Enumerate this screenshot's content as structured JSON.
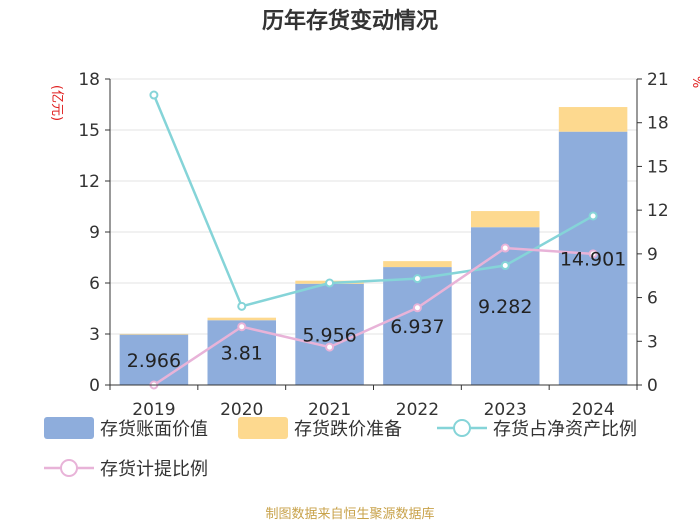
{
  "chart_data": {
    "type": "bar",
    "title": "历年存货变动情况",
    "categories": [
      "2019",
      "2020",
      "2021",
      "2022",
      "2023",
      "2024"
    ],
    "left_axis": {
      "unit": "(亿元)",
      "ylim": [
        0,
        18
      ],
      "ticks": [
        "0",
        "3",
        "6",
        "9",
        "12",
        "15",
        "18"
      ]
    },
    "right_axis": {
      "unit": "%",
      "ylim": [
        0,
        21
      ],
      "ticks": [
        "0",
        "3",
        "6",
        "9",
        "12",
        "15",
        "18",
        "21"
      ]
    },
    "series": [
      {
        "name": "存货账面价值",
        "type": "bar",
        "stack": "inventory",
        "axis": "left",
        "color": "#8eaddc",
        "values": [
          2.966,
          3.81,
          5.956,
          6.937,
          9.282,
          14.901
        ],
        "labels": [
          "2.966",
          "3.81",
          "5.956",
          "6.937",
          "9.282",
          "14.901"
        ]
      },
      {
        "name": "存货跌价准备",
        "type": "bar",
        "stack": "inventory",
        "axis": "left",
        "color": "#fdd98f",
        "values": [
          0.04,
          0.15,
          0.18,
          0.35,
          0.95,
          1.45
        ]
      },
      {
        "name": "存货占净资产比例",
        "type": "line",
        "axis": "right",
        "color": "#85d4d8",
        "values": [
          19.9,
          5.4,
          7.0,
          7.3,
          8.2,
          11.6
        ]
      },
      {
        "name": "存货计提比例",
        "type": "line",
        "axis": "right",
        "color": "#e8b3d8",
        "values": [
          0.0,
          4.0,
          2.6,
          5.3,
          9.4,
          9.0
        ]
      }
    ],
    "grid": true,
    "legend_position": "bottom",
    "source": "制图数据来自恒生聚源数据库"
  }
}
